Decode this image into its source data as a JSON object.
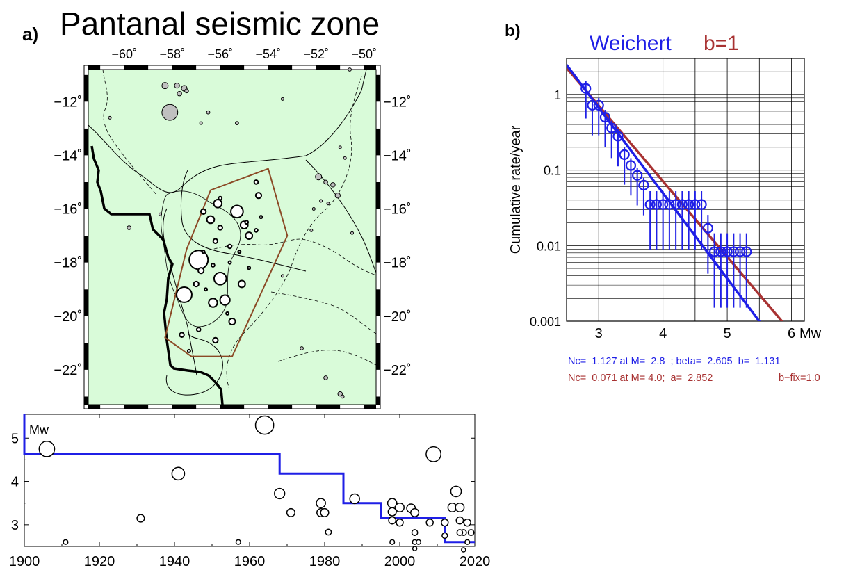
{
  "panel_a": {
    "label": "a)",
    "title": "Pantanal seismic zone",
    "colors": {
      "land": "#d9fbd9",
      "polygon": "#8b4a26",
      "quake_fill": "#c0c0c0"
    }
  },
  "panel_b": {
    "label": "b)",
    "legend_weichert": "Weichert",
    "legend_b1": "b=1",
    "colors": {
      "weichert": "#1f1fe6",
      "b1": "#a83232"
    },
    "annotation_1": "Nc=  1.127 at M=  2.8  ; beta=  2.605  b=  1.131",
    "annotation_2_part1": "Nc=  0.071 at M= 4.0;  a=  2.852",
    "annotation_2_part2": "b−fix=1.0"
  },
  "chart_data": [
    {
      "type": "scatter",
      "name": "map",
      "xlim": [
        -61.5,
        -49.5
      ],
      "ylim": [
        -23.3,
        -10.8
      ],
      "xticks": [
        -60,
        -58,
        -56,
        -54,
        -52,
        -50
      ],
      "yticks": [
        -12,
        -14,
        -16,
        -18,
        -20,
        -22
      ],
      "xticklabels": [
        "−60˚",
        "−58˚",
        "−56˚",
        "−54˚",
        "−52˚",
        "−50˚"
      ],
      "yticklabels": [
        "−12˚",
        "−14˚",
        "−16˚",
        "−18˚",
        "−20˚",
        "−22˚"
      ],
      "zone_polygon": [
        [
          -56.4,
          -15.3
        ],
        [
          -54.0,
          -14.5
        ],
        [
          -53.2,
          -17.0
        ],
        [
          -55.5,
          -21.5
        ],
        [
          -57.2,
          -21.5
        ],
        [
          -58.3,
          -20.8
        ],
        [
          -57.4,
          -17.5
        ]
      ],
      "events_inside": [
        {
          "lon": -57.5,
          "lat": -19.2,
          "mag": 4.7
        },
        {
          "lon": -56.9,
          "lat": -17.9,
          "mag": 5.3
        },
        {
          "lon": -55.3,
          "lat": -16.1,
          "mag": 4.2
        },
        {
          "lon": -56.0,
          "lat": -18.6,
          "mag": 4.2
        },
        {
          "lon": -55.8,
          "lat": -19.4,
          "mag": 3.8
        },
        {
          "lon": -56.3,
          "lat": -19.5,
          "mag": 3.6
        },
        {
          "lon": -56.1,
          "lat": -15.8,
          "mag": 3.5
        },
        {
          "lon": -56.4,
          "lat": -16.4,
          "mag": 3.4
        },
        {
          "lon": -55.0,
          "lat": -16.6,
          "mag": 3.4
        },
        {
          "lon": -54.8,
          "lat": -17.0,
          "mag": 3.3
        },
        {
          "lon": -55.1,
          "lat": -18.8,
          "mag": 3.3
        },
        {
          "lon": -55.5,
          "lat": -20.2,
          "mag": 3.2
        },
        {
          "lon": -54.4,
          "lat": -15.5,
          "mag": 3.1
        },
        {
          "lon": -56.8,
          "lat": -18.3,
          "mag": 3.1
        },
        {
          "lon": -57.0,
          "lat": -18.8,
          "mag": 3.0
        },
        {
          "lon": -56.7,
          "lat": -16.1,
          "mag": 3.0
        },
        {
          "lon": -56.0,
          "lat": -16.7,
          "mag": 2.9
        },
        {
          "lon": -56.2,
          "lat": -17.2,
          "mag": 2.9
        },
        {
          "lon": -55.6,
          "lat": -17.4,
          "mag": 2.8
        },
        {
          "lon": -54.5,
          "lat": -15.0,
          "mag": 2.8
        },
        {
          "lon": -56.9,
          "lat": -20.5,
          "mag": 2.8
        },
        {
          "lon": -56.2,
          "lat": -20.9,
          "mag": 3.0
        },
        {
          "lon": -57.6,
          "lat": -20.7,
          "mag": 2.9
        },
        {
          "lon": -54.5,
          "lat": -16.8,
          "mag": 2.7
        },
        {
          "lon": -55.2,
          "lat": -17.6,
          "mag": 2.6
        },
        {
          "lon": -56.6,
          "lat": -19.0,
          "mag": 2.6
        },
        {
          "lon": -57.3,
          "lat": -21.3,
          "mag": 2.6
        },
        {
          "lon": -54.3,
          "lat": -16.3,
          "mag": 2.6
        },
        {
          "lon": -55.6,
          "lat": -18.0,
          "mag": 2.6
        },
        {
          "lon": -54.9,
          "lat": -16.5,
          "mag": 2.7
        },
        {
          "lon": -56.0,
          "lat": -15.6,
          "mag": 2.7
        },
        {
          "lon": -55.7,
          "lat": -19.9,
          "mag": 2.6
        },
        {
          "lon": -56.7,
          "lat": -17.6,
          "mag": 2.6
        },
        {
          "lon": -54.8,
          "lat": -18.2,
          "mag": 2.6
        },
        {
          "lon": -56.3,
          "lat": -18.1,
          "mag": 2.7
        }
      ],
      "events_outside": [
        {
          "lon": -58.3,
          "lat": -11.4,
          "mag": 3.2
        },
        {
          "lon": -57.8,
          "lat": -11.4,
          "mag": 3.0
        },
        {
          "lon": -57.5,
          "lat": -11.5,
          "mag": 3.1
        },
        {
          "lon": -57.7,
          "lat": -11.7,
          "mag": 2.9
        },
        {
          "lon": -57.4,
          "lat": -11.6,
          "mag": 2.8
        },
        {
          "lon": -58.1,
          "lat": -12.4,
          "mag": 4.8
        },
        {
          "lon": -56.5,
          "lat": -12.4,
          "mag": 2.7
        },
        {
          "lon": -56.8,
          "lat": -12.8,
          "mag": 2.6
        },
        {
          "lon": -55.3,
          "lat": -12.8,
          "mag": 2.7
        },
        {
          "lon": -60.6,
          "lat": -12.6,
          "mag": 2.6
        },
        {
          "lon": -53.4,
          "lat": -11.9,
          "mag": 2.6
        },
        {
          "lon": -50.6,
          "lat": -10.8,
          "mag": 2.7
        },
        {
          "lon": -51.9,
          "lat": -14.8,
          "mag": 3.2
        },
        {
          "lon": -51.6,
          "lat": -15.0,
          "mag": 2.8
        },
        {
          "lon": -51.3,
          "lat": -15.1,
          "mag": 2.9
        },
        {
          "lon": -51.1,
          "lat": -15.5,
          "mag": 3.0
        },
        {
          "lon": -51.8,
          "lat": -15.7,
          "mag": 2.6
        },
        {
          "lon": -52.1,
          "lat": -16.0,
          "mag": 2.6
        },
        {
          "lon": -51.5,
          "lat": -15.8,
          "mag": 2.6
        },
        {
          "lon": -51.0,
          "lat": -13.7,
          "mag": 2.6
        },
        {
          "lon": -50.8,
          "lat": -14.1,
          "mag": 2.6
        },
        {
          "lon": -59.8,
          "lat": -16.7,
          "mag": 2.8
        },
        {
          "lon": -58.5,
          "lat": -16.2,
          "mag": 2.6
        },
        {
          "lon": -51.6,
          "lat": -22.3,
          "mag": 2.8
        },
        {
          "lon": -51.0,
          "lat": -22.9,
          "mag": 2.9
        },
        {
          "lon": -50.9,
          "lat": -23.0,
          "mag": 2.7
        },
        {
          "lon": -52.6,
          "lat": -21.2,
          "mag": 2.7
        },
        {
          "lon": -52.2,
          "lat": -16.8,
          "mag": 2.6
        },
        {
          "lon": -53.4,
          "lat": -18.5,
          "mag": 2.6
        },
        {
          "lon": -50.5,
          "lat": -16.9,
          "mag": 2.6
        }
      ]
    },
    {
      "type": "scatter",
      "name": "magnitude-time",
      "xlim": [
        1900,
        2020
      ],
      "ylim": [
        2.5,
        5.55
      ],
      "xticks": [
        1900,
        1920,
        1940,
        1960,
        1980,
        2000,
        2020
      ],
      "yticks": [
        3,
        4,
        5
      ],
      "ylabel": "Mw",
      "events": [
        {
          "year": 1906,
          "mag": 4.75
        },
        {
          "year": 1911,
          "mag": 2.6
        },
        {
          "year": 1931,
          "mag": 3.15
        },
        {
          "year": 1941,
          "mag": 4.18
        },
        {
          "year": 1957,
          "mag": 2.6
        },
        {
          "year": 1964,
          "mag": 5.3
        },
        {
          "year": 1968,
          "mag": 3.72
        },
        {
          "year": 1971,
          "mag": 3.28
        },
        {
          "year": 1979,
          "mag": 3.5
        },
        {
          "year": 1979,
          "mag": 3.28
        },
        {
          "year": 1980,
          "mag": 3.28
        },
        {
          "year": 1981,
          "mag": 2.83
        },
        {
          "year": 1988,
          "mag": 3.6
        },
        {
          "year": 1998,
          "mag": 3.5
        },
        {
          "year": 1998,
          "mag": 3.3
        },
        {
          "year": 1998,
          "mag": 3.1
        },
        {
          "year": 1998,
          "mag": 2.6
        },
        {
          "year": 2000,
          "mag": 3.4
        },
        {
          "year": 2000,
          "mag": 3.05
        },
        {
          "year": 2003,
          "mag": 3.38
        },
        {
          "year": 2004,
          "mag": 3.28
        },
        {
          "year": 2004,
          "mag": 2.82
        },
        {
          "year": 2004,
          "mag": 2.6
        },
        {
          "year": 2005,
          "mag": 2.6
        },
        {
          "year": 2004,
          "mag": 2.45
        },
        {
          "year": 2008,
          "mag": 3.05
        },
        {
          "year": 2009,
          "mag": 4.63
        },
        {
          "year": 2012,
          "mag": 3.05
        },
        {
          "year": 2012,
          "mag": 2.75
        },
        {
          "year": 2014,
          "mag": 3.4
        },
        {
          "year": 2015,
          "mag": 3.77
        },
        {
          "year": 2016,
          "mag": 3.4
        },
        {
          "year": 2016,
          "mag": 3.1
        },
        {
          "year": 2017,
          "mag": 2.82
        },
        {
          "year": 2018,
          "mag": 3.05
        },
        {
          "year": 2018,
          "mag": 2.6
        },
        {
          "year": 2019,
          "mag": 2.82
        },
        {
          "year": 2016,
          "mag": 2.82
        },
        {
          "year": 2017,
          "mag": 2.42
        }
      ],
      "completeness_steps": [
        [
          1900,
          5.55
        ],
        [
          1900,
          4.63
        ],
        [
          1968,
          4.63
        ],
        [
          1968,
          4.18
        ],
        [
          1985,
          4.18
        ],
        [
          1985,
          3.5
        ],
        [
          1995,
          3.5
        ],
        [
          1995,
          3.15
        ],
        [
          2012,
          3.15
        ],
        [
          2012,
          2.6
        ],
        [
          2020,
          2.6
        ]
      ]
    },
    {
      "type": "scatter",
      "name": "frequency-magnitude",
      "xlim": [
        2.5,
        6.2
      ],
      "ylim": [
        0.001,
        3
      ],
      "yscale": "log",
      "xticks": [
        3,
        4,
        5,
        6
      ],
      "yticks": [
        1,
        0.1,
        0.01,
        0.001
      ],
      "yticklabels": [
        "1",
        "0.1",
        "0.01",
        "0.001"
      ],
      "xunit_label": "Mw",
      "ylabel": "Cumulative rate/year",
      "series": [
        {
          "name": "Weichert",
          "a": 0.0,
          "b": 1.131,
          "ref_mag": 2.8,
          "ref_rate": 1.127
        },
        {
          "name": "b=1",
          "b": 1.0,
          "ref_mag": 4.0,
          "ref_rate": 0.071
        },
        {
          "points": [
            {
              "m": 2.8,
              "r": 1.2,
              "err": 1
            },
            {
              "m": 2.9,
              "r": 0.72,
              "err": 1
            },
            {
              "m": 3.0,
              "r": 0.72,
              "err": 1
            },
            {
              "m": 3.1,
              "r": 0.5,
              "err": 1
            },
            {
              "m": 3.2,
              "r": 0.36,
              "err": 1
            },
            {
              "m": 3.3,
              "r": 0.28,
              "err": 1
            },
            {
              "m": 3.4,
              "r": 0.16,
              "err": 1
            },
            {
              "m": 3.5,
              "r": 0.115,
              "err": 1
            },
            {
              "m": 3.6,
              "r": 0.085,
              "err": 1
            },
            {
              "m": 3.7,
              "r": 0.063,
              "err": 1
            },
            {
              "m": 3.8,
              "r": 0.035,
              "err": 2
            },
            {
              "m": 3.9,
              "r": 0.035,
              "err": 2
            },
            {
              "m": 4.0,
              "r": 0.035,
              "err": 2
            },
            {
              "m": 4.1,
              "r": 0.035,
              "err": 2
            },
            {
              "m": 4.2,
              "r": 0.035,
              "err": 2
            },
            {
              "m": 4.3,
              "r": 0.035,
              "err": 2
            },
            {
              "m": 4.4,
              "r": 0.035,
              "err": 2
            },
            {
              "m": 4.5,
              "r": 0.035,
              "err": 2
            },
            {
              "m": 4.6,
              "r": 0.035,
              "err": 2
            },
            {
              "m": 4.7,
              "r": 0.017,
              "err": 2
            },
            {
              "m": 4.8,
              "r": 0.0083,
              "err": 3
            },
            {
              "m": 4.9,
              "r": 0.0083,
              "err": 3
            },
            {
              "m": 5.0,
              "r": 0.0083,
              "err": 3
            },
            {
              "m": 5.1,
              "r": 0.0083,
              "err": 3
            },
            {
              "m": 5.2,
              "r": 0.0083,
              "err": 3
            },
            {
              "m": 5.3,
              "r": 0.0083,
              "err": 3
            }
          ]
        }
      ]
    }
  ]
}
